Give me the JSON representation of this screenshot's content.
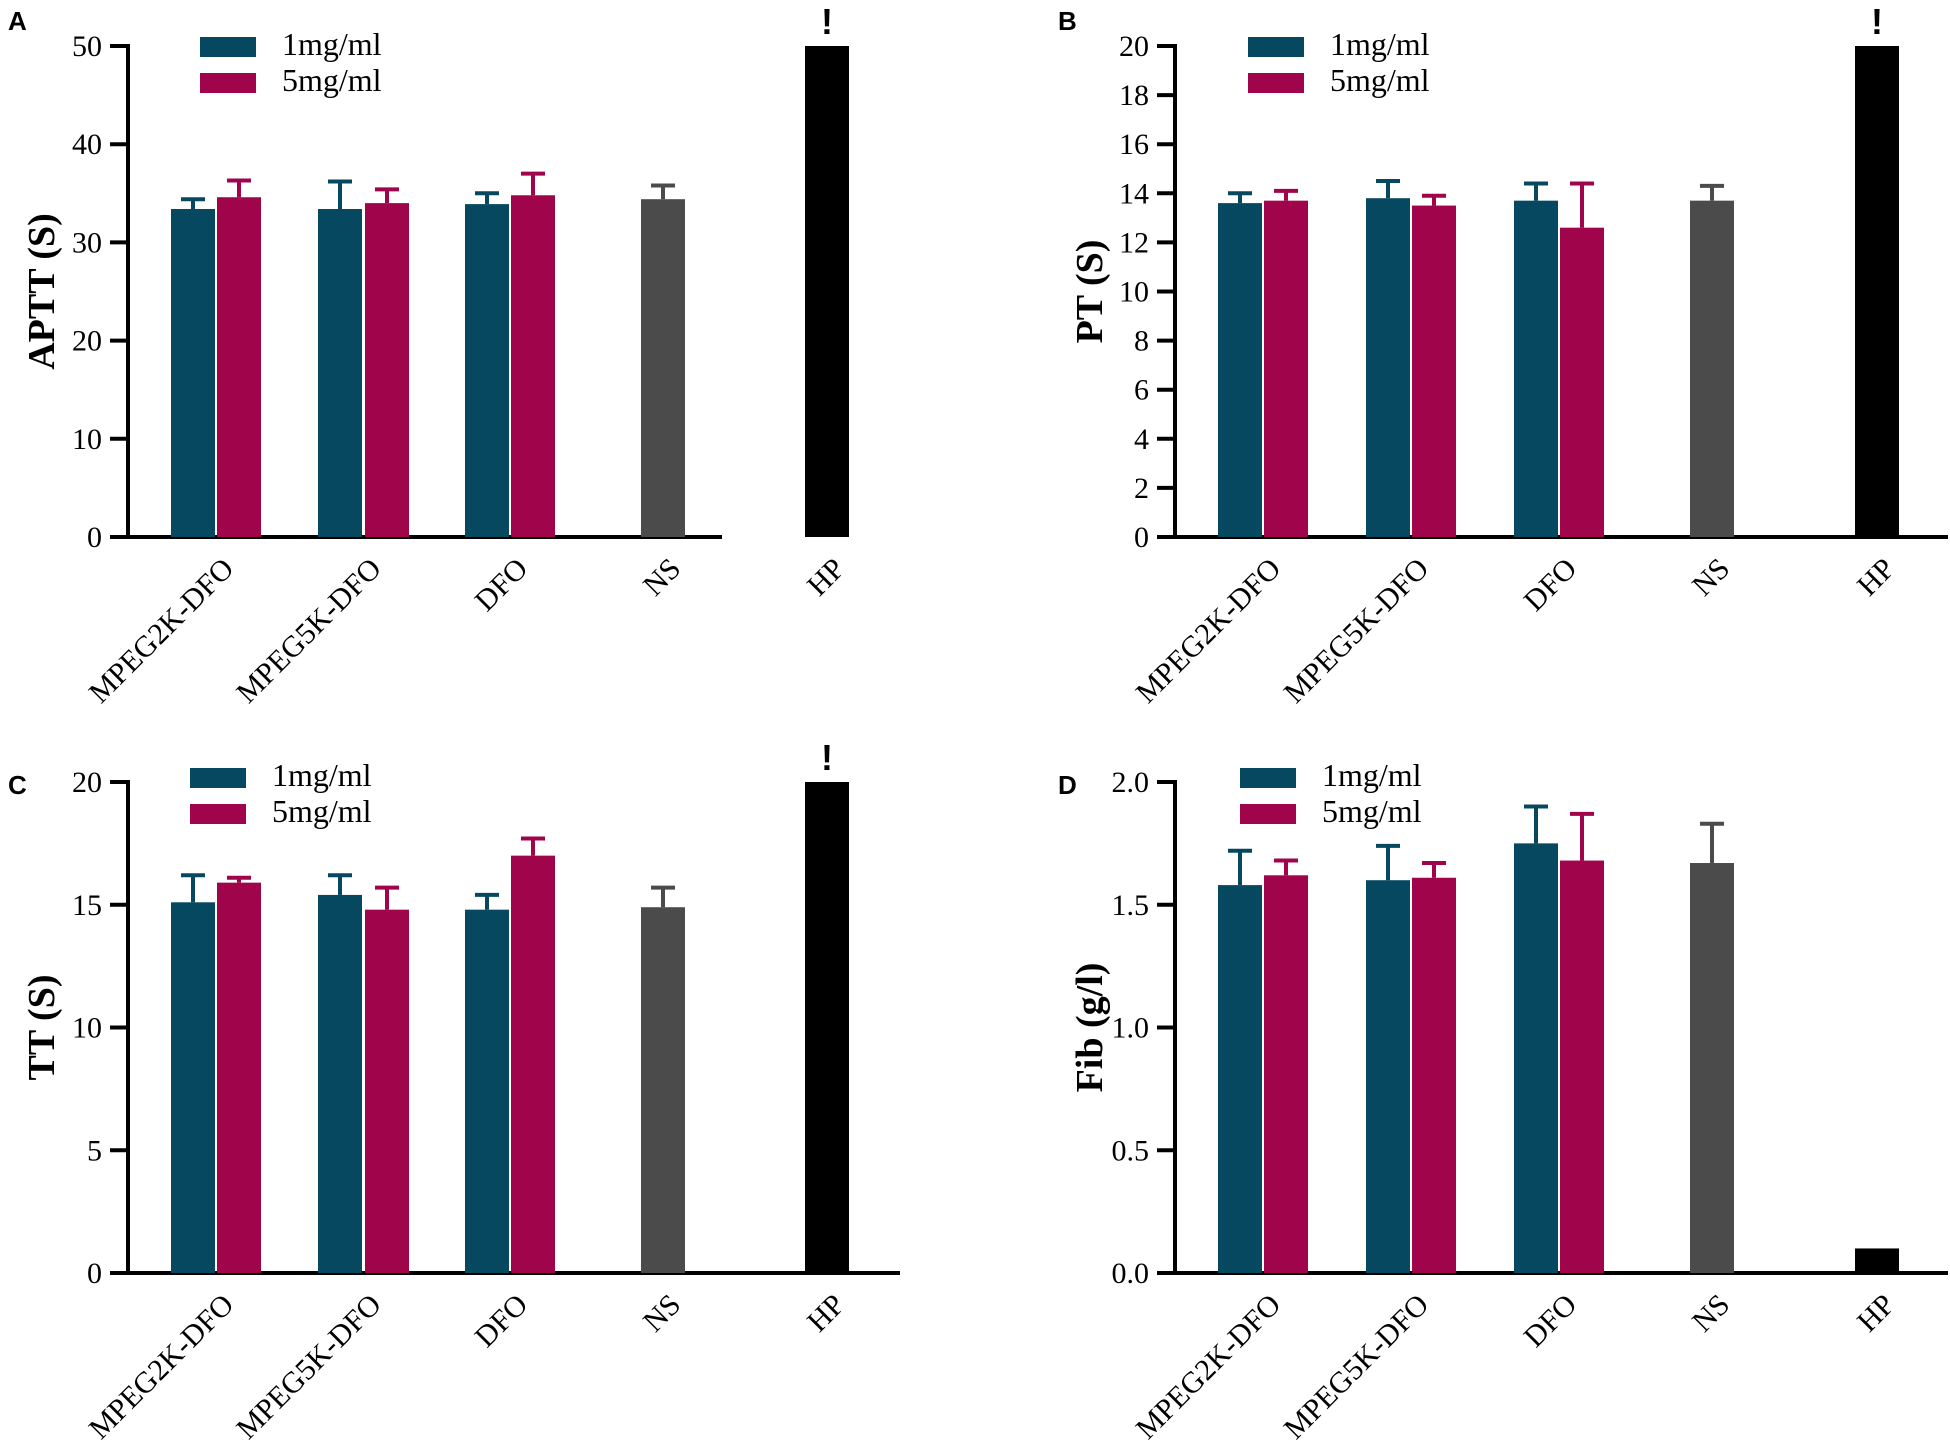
{
  "colors": {
    "1mg/ml": "#05485f",
    "5mg/ml": "#a0054c",
    "NS": "#4b4b4b",
    "HP": "#000000"
  },
  "chart_data": [
    {
      "panel": "A",
      "type": "bar",
      "ylabel": "APTT (S)",
      "ylim": [
        0,
        50
      ],
      "yticks": [
        0,
        10,
        20,
        30,
        40,
        50
      ],
      "yticklabels": [
        "0",
        "10",
        "20",
        "30",
        "40",
        "50"
      ],
      "categories": [
        "MPEG2K-DFO",
        "MPEG5K-DFO",
        "DFO",
        "NS",
        "HP"
      ],
      "legend": [
        "1mg/ml",
        "5mg/ml"
      ],
      "legend_position": "top-left",
      "bars": [
        {
          "category": "MPEG2K-DFO",
          "series": "1mg/ml",
          "value": 33.4,
          "error": 1.0
        },
        {
          "category": "MPEG2K-DFO",
          "series": "5mg/ml",
          "value": 34.6,
          "error": 1.7
        },
        {
          "category": "MPEG5K-DFO",
          "series": "1mg/ml",
          "value": 33.4,
          "error": 2.8
        },
        {
          "category": "MPEG5K-DFO",
          "series": "5mg/ml",
          "value": 34.0,
          "error": 1.4
        },
        {
          "category": "DFO",
          "series": "1mg/ml",
          "value": 33.9,
          "error": 1.1
        },
        {
          "category": "DFO",
          "series": "5mg/ml",
          "value": 34.8,
          "error": 2.2
        },
        {
          "category": "NS",
          "series": "NS",
          "value": 34.4,
          "error": 1.4
        },
        {
          "category": "HP",
          "series": "HP",
          "value": 50.0,
          "error": 0,
          "flag": "!"
        }
      ]
    },
    {
      "panel": "B",
      "type": "bar",
      "ylabel": "PT (S)",
      "ylim": [
        0,
        20
      ],
      "yticks": [
        0,
        2,
        4,
        6,
        8,
        10,
        12,
        14,
        16,
        18,
        20
      ],
      "yticklabels": [
        "0",
        "2",
        "4",
        "6",
        "8",
        "10",
        "12",
        "14",
        "16",
        "18",
        "20"
      ],
      "categories": [
        "MPEG2K-DFO",
        "MPEG5K-DFO",
        "DFO",
        "NS",
        "HP"
      ],
      "legend": [
        "1mg/ml",
        "5mg/ml"
      ],
      "legend_position": "top-left",
      "bars": [
        {
          "category": "MPEG2K-DFO",
          "series": "1mg/ml",
          "value": 13.6,
          "error": 0.4
        },
        {
          "category": "MPEG2K-DFO",
          "series": "5mg/ml",
          "value": 13.7,
          "error": 0.4
        },
        {
          "category": "MPEG5K-DFO",
          "series": "1mg/ml",
          "value": 13.8,
          "error": 0.7
        },
        {
          "category": "MPEG5K-DFO",
          "series": "5mg/ml",
          "value": 13.5,
          "error": 0.4
        },
        {
          "category": "DFO",
          "series": "1mg/ml",
          "value": 13.7,
          "error": 0.7
        },
        {
          "category": "DFO",
          "series": "5mg/ml",
          "value": 12.6,
          "error": 1.8
        },
        {
          "category": "NS",
          "series": "NS",
          "value": 13.7,
          "error": 0.6
        },
        {
          "category": "HP",
          "series": "HP",
          "value": 20.0,
          "error": 0,
          "flag": "!"
        }
      ]
    },
    {
      "panel": "C",
      "type": "bar",
      "ylabel": "TT (S)",
      "ylim": [
        0,
        20
      ],
      "yticks": [
        0,
        5,
        10,
        15,
        20
      ],
      "yticklabels": [
        "0",
        "5",
        "10",
        "15",
        "20"
      ],
      "categories": [
        "MPEG2K-DFO",
        "MPEG5K-DFO",
        "DFO",
        "NS",
        "HP"
      ],
      "legend": [
        "1mg/ml",
        "5mg/ml"
      ],
      "legend_position": "top-left",
      "bars": [
        {
          "category": "MPEG2K-DFO",
          "series": "1mg/ml",
          "value": 15.1,
          "error": 1.1
        },
        {
          "category": "MPEG2K-DFO",
          "series": "5mg/ml",
          "value": 15.9,
          "error": 0.2
        },
        {
          "category": "MPEG5K-DFO",
          "series": "1mg/ml",
          "value": 15.4,
          "error": 0.8
        },
        {
          "category": "MPEG5K-DFO",
          "series": "5mg/ml",
          "value": 14.8,
          "error": 0.9
        },
        {
          "category": "DFO",
          "series": "1mg/ml",
          "value": 14.8,
          "error": 0.6
        },
        {
          "category": "DFO",
          "series": "5mg/ml",
          "value": 17.0,
          "error": 0.7
        },
        {
          "category": "NS",
          "series": "NS",
          "value": 14.9,
          "error": 0.8
        },
        {
          "category": "HP",
          "series": "HP",
          "value": 20.0,
          "error": 0,
          "flag": "!"
        }
      ]
    },
    {
      "panel": "D",
      "type": "bar",
      "ylabel": "Fib (g/l)",
      "ylim": [
        0,
        2.0
      ],
      "yticks": [
        0,
        0.5,
        1.0,
        1.5,
        2.0
      ],
      "yticklabels": [
        "0.0",
        "0.5",
        "1.0",
        "1.5",
        "2.0"
      ],
      "categories": [
        "MPEG2K-DFO",
        "MPEG5K-DFO",
        "DFO",
        "NS",
        "HP"
      ],
      "legend": [
        "1mg/ml",
        "5mg/ml"
      ],
      "legend_position": "top-left",
      "bars": [
        {
          "category": "MPEG2K-DFO",
          "series": "1mg/ml",
          "value": 1.58,
          "error": 0.14
        },
        {
          "category": "MPEG2K-DFO",
          "series": "5mg/ml",
          "value": 1.62,
          "error": 0.06
        },
        {
          "category": "MPEG5K-DFO",
          "series": "1mg/ml",
          "value": 1.6,
          "error": 0.14
        },
        {
          "category": "MPEG5K-DFO",
          "series": "5mg/ml",
          "value": 1.61,
          "error": 0.06
        },
        {
          "category": "DFO",
          "series": "1mg/ml",
          "value": 1.75,
          "error": 0.15
        },
        {
          "category": "DFO",
          "series": "5mg/ml",
          "value": 1.68,
          "error": 0.19
        },
        {
          "category": "NS",
          "series": "NS",
          "value": 1.67,
          "error": 0.16
        },
        {
          "category": "HP",
          "series": "HP",
          "value": 0.1,
          "error": 0
        }
      ]
    }
  ]
}
